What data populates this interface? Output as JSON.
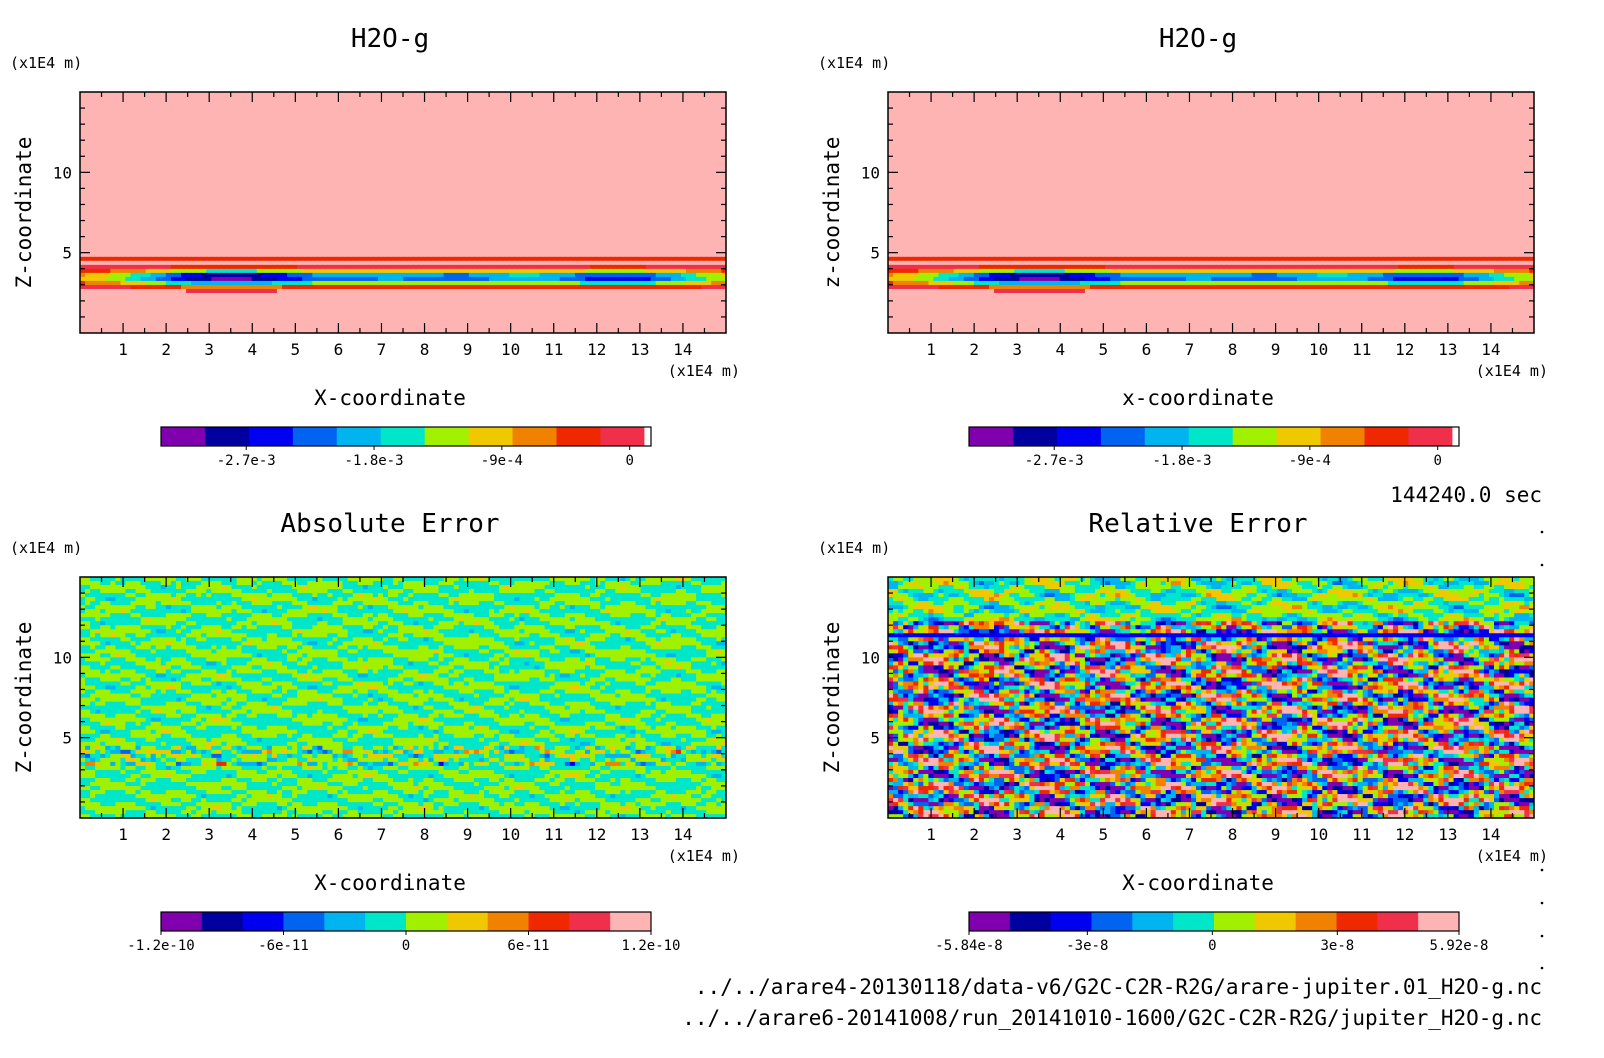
{
  "time_label": "144240.0 sec",
  "file_lines": [
    "../../arare4-20130118/data-v6/G2C-C2R-R2G/arare-jupiter.01_H2O-g.nc",
    "../../arare6-20141008/run_20141010-1600/G2C-C2R-R2G/jupiter_H2O-g.nc"
  ],
  "palette": [
    "#8000b0",
    "#0000a0",
    "#0000f0",
    "#0064f0",
    "#00b4f0",
    "#00e6c8",
    "#a0f000",
    "#f0c800",
    "#f08200",
    "#f02800",
    "#f0304a",
    "#ffb4b4"
  ],
  "chart_data": [
    {
      "type": "heatmap",
      "title": "H2O-g",
      "xlabel": "X-coordinate",
      "ylabel": "Z-coordinate",
      "x_unit": "(x1E4 m)",
      "y_unit": "(x1E4 m)",
      "xlim": [
        0,
        15
      ],
      "ylim": [
        0,
        15
      ],
      "xticks": [
        1,
        2,
        3,
        4,
        5,
        6,
        7,
        8,
        9,
        10,
        11,
        12,
        13,
        14
      ],
      "yticks": [
        5,
        10
      ],
      "field": "h2o",
      "colorbar": {
        "min": -0.0033,
        "max": 0.00015,
        "ticks": [
          -0.0027,
          -0.0018,
          -0.0009,
          0
        ],
        "tick_labels": [
          "-2.7e-3",
          "-1.8e-3",
          "-9e-4",
          "0"
        ]
      }
    },
    {
      "type": "heatmap",
      "title": "H2O-g",
      "xlabel": "x-coordinate",
      "ylabel": "z-coordinate",
      "x_unit": "(x1E4 m)",
      "y_unit": "(x1E4 m)",
      "xlim": [
        0,
        15
      ],
      "ylim": [
        0,
        15
      ],
      "xticks": [
        1,
        2,
        3,
        4,
        5,
        6,
        7,
        8,
        9,
        10,
        11,
        12,
        13,
        14
      ],
      "yticks": [
        5,
        10
      ],
      "field": "h2o",
      "colorbar": {
        "min": -0.0033,
        "max": 0.00015,
        "ticks": [
          -0.0027,
          -0.0018,
          -0.0009,
          0
        ],
        "tick_labels": [
          "-2.7e-3",
          "-1.8e-3",
          "-9e-4",
          "0"
        ]
      }
    },
    {
      "type": "heatmap",
      "title": "Absolute Error",
      "xlabel": "X-coordinate",
      "ylabel": "Z-coordinate",
      "x_unit": "(x1E4 m)",
      "y_unit": "(x1E4 m)",
      "xlim": [
        0,
        15
      ],
      "ylim": [
        0,
        15
      ],
      "xticks": [
        1,
        2,
        3,
        4,
        5,
        6,
        7,
        8,
        9,
        10,
        11,
        12,
        13,
        14
      ],
      "yticks": [
        5,
        10
      ],
      "field": "abs",
      "colorbar": {
        "min": -1.2e-10,
        "max": 1.2e-10,
        "ticks": [
          -1.2e-10,
          -6e-11,
          0,
          6e-11,
          1.2e-10
        ],
        "tick_labels": [
          "-1.2e-10",
          "-6e-11",
          "0",
          "6e-11",
          "1.2e-10"
        ]
      }
    },
    {
      "type": "heatmap",
      "title": "Relative Error",
      "xlabel": "X-coordinate",
      "ylabel": "Z-coordinate",
      "x_unit": "(x1E4 m)",
      "y_unit": "(x1E4 m)",
      "xlim": [
        0,
        15
      ],
      "ylim": [
        0,
        15
      ],
      "xticks": [
        1,
        2,
        3,
        4,
        5,
        6,
        7,
        8,
        9,
        10,
        11,
        12,
        13,
        14
      ],
      "yticks": [
        5,
        10
      ],
      "field": "rel",
      "colorbar": {
        "min": -5.84e-08,
        "max": 5.92e-08,
        "ticks": [
          -5.84e-08,
          -3e-08,
          0,
          3e-08,
          5.92e-08
        ],
        "tick_labels": [
          "-5.84e-8",
          "-3e-8",
          "0",
          "3e-8",
          "5.92e-8"
        ]
      }
    }
  ]
}
